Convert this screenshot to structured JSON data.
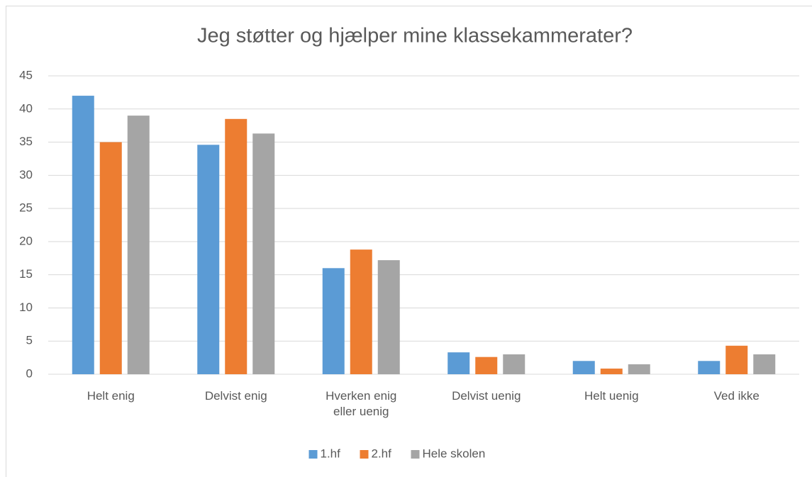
{
  "chart_data": {
    "type": "bar",
    "title": "Jeg støtter og hjælper mine klassekammerater?",
    "categories": [
      "Helt enig",
      "Delvist enig",
      "Hverken enig eller uenig",
      "Delvist uenig",
      "Helt uenig",
      "Ved ikke"
    ],
    "series": [
      {
        "name": "1.hf",
        "color": "#5b9bd5",
        "values": [
          42,
          34.6,
          16,
          3.3,
          2,
          2
        ]
      },
      {
        "name": "2.hf",
        "color": "#ed7d31",
        "values": [
          35,
          38.5,
          18.8,
          2.6,
          0.85,
          4.3
        ]
      },
      {
        "name": "Hele skolen",
        "color": "#a5a5a5",
        "values": [
          39,
          36.3,
          17.2,
          3,
          1.5,
          3
        ]
      }
    ],
    "ylim": [
      0,
      45
    ],
    "yticks": [
      0,
      5,
      10,
      15,
      20,
      25,
      30,
      35,
      40,
      45
    ],
    "grid": true,
    "legend": "bottom"
  }
}
